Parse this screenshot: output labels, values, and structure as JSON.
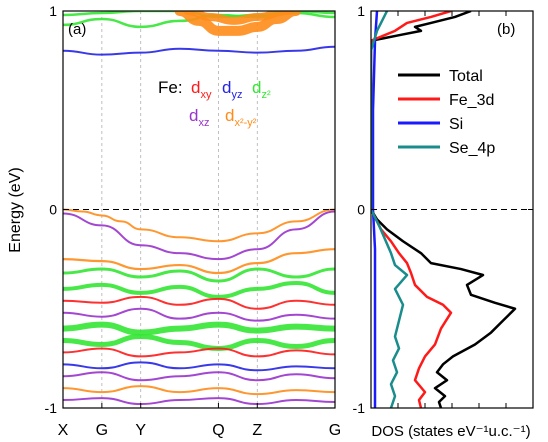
{
  "chart_data": [
    {
      "panel_label": "(a)",
      "type": "line",
      "title": "",
      "ylabel": "Energy (eV)",
      "xlabel": "",
      "ylim": [
        -1,
        1
      ],
      "yticks": [
        -1,
        0,
        1
      ],
      "k_labels": [
        "X",
        "G",
        "Y",
        "Q",
        "Z",
        "G"
      ],
      "k_positions": [
        0,
        1,
        2,
        4,
        5,
        7
      ],
      "xlim": [
        0,
        7
      ],
      "fermi_level": 0,
      "legend": {
        "prefix": "Fe:",
        "orbitals": [
          {
            "base": "d",
            "sub": "xy",
            "color": "#ff1a1a"
          },
          {
            "base": "d",
            "sub": "yz",
            "color": "#2323e6"
          },
          {
            "base": "d",
            "sub": "z²",
            "color": "#33e633"
          },
          {
            "base": "d",
            "sub": "xz",
            "color": "#9933cc"
          },
          {
            "base": "d",
            "sub": "x²-y²",
            "color": "#ff8c1a"
          }
        ]
      },
      "series": [
        {
          "values": [
            [
              0,
              0.8
            ],
            [
              1,
              0.78
            ],
            [
              2,
              0.79
            ],
            [
              3,
              0.81
            ],
            [
              4,
              0.8
            ],
            [
              5,
              0.79
            ],
            [
              6,
              0.8
            ],
            [
              7,
              0.82
            ]
          ],
          "color": "#2323e6",
          "width": 2.0
        },
        {
          "values": [
            [
              0,
              0.93
            ],
            [
              1,
              0.96
            ],
            [
              2,
              0.92
            ],
            [
              3,
              0.95
            ],
            [
              4,
              0.98
            ],
            [
              5,
              0.97
            ],
            [
              6,
              0.99
            ],
            [
              7,
              0.97
            ]
          ],
          "color": "#33e633",
          "width": 2.5
        },
        {
          "values": [
            [
              0,
              0.98
            ],
            [
              1,
              0.99
            ],
            [
              2,
              1.0
            ],
            [
              3,
              1.0
            ],
            [
              4,
              0.97
            ],
            [
              5,
              0.98
            ],
            [
              6,
              1.0
            ],
            [
              7,
              0.99
            ]
          ],
          "color": "#33e633",
          "width": 2.5
        },
        {
          "values": [
            [
              3,
              1.0
            ],
            [
              3.5,
              0.95
            ],
            [
              4,
              0.9
            ],
            [
              4.5,
              0.9
            ],
            [
              5,
              0.92
            ],
            [
              5.5,
              0.96
            ],
            [
              6,
              1.0
            ]
          ],
          "color": "#ff8c1a",
          "width": 10
        },
        {
          "values": [
            [
              3.2,
              1.0
            ],
            [
              3.8,
              0.97
            ],
            [
              4.4,
              0.95
            ],
            [
              5,
              0.97
            ],
            [
              5.8,
              1.0
            ]
          ],
          "color": "#ff8c1a",
          "width": 8
        },
        {
          "values": [
            [
              0,
              0.0
            ],
            [
              0.5,
              -0.01
            ],
            [
              1,
              -0.03
            ],
            [
              1.5,
              -0.06
            ],
            [
              2,
              -0.1
            ],
            [
              3,
              -0.14
            ],
            [
              4,
              -0.16
            ],
            [
              5,
              -0.12
            ],
            [
              6,
              -0.06
            ],
            [
              7,
              0.0
            ]
          ],
          "color": "#ff8c1a",
          "width": 2.0
        },
        {
          "values": [
            [
              0,
              -0.02
            ],
            [
              1,
              -0.08
            ],
            [
              2,
              -0.18
            ],
            [
              3,
              -0.22
            ],
            [
              4,
              -0.25
            ],
            [
              5,
              -0.2
            ],
            [
              6,
              -0.1
            ],
            [
              7,
              -0.01
            ]
          ],
          "color": "#9933cc",
          "width": 2.0
        },
        {
          "values": [
            [
              0,
              -0.25
            ],
            [
              1,
              -0.26
            ],
            [
              2,
              -0.3
            ],
            [
              3,
              -0.28
            ],
            [
              4,
              -0.32
            ],
            [
              5,
              -0.27
            ],
            [
              6,
              -0.22
            ],
            [
              7,
              -0.2
            ]
          ],
          "color": "#ff8c1a",
          "width": 2.2
        },
        {
          "values": [
            [
              0,
              -0.32
            ],
            [
              1,
              -0.3
            ],
            [
              2,
              -0.34
            ],
            [
              3,
              -0.31
            ],
            [
              4,
              -0.36
            ],
            [
              5,
              -0.3
            ],
            [
              6,
              -0.34
            ],
            [
              7,
              -0.3
            ]
          ],
          "color": "#33e633",
          "width": 3.0
        },
        {
          "values": [
            [
              0,
              -0.4
            ],
            [
              1,
              -0.38
            ],
            [
              2,
              -0.42
            ],
            [
              3,
              -0.39
            ],
            [
              4,
              -0.44
            ],
            [
              5,
              -0.4
            ],
            [
              6,
              -0.37
            ],
            [
              7,
              -0.42
            ]
          ],
          "color": "#33e633",
          "width": 4.0
        },
        {
          "values": [
            [
              0,
              -0.46
            ],
            [
              1,
              -0.47
            ],
            [
              2,
              -0.44
            ],
            [
              3,
              -0.48
            ],
            [
              4,
              -0.45
            ],
            [
              5,
              -0.5
            ],
            [
              6,
              -0.46
            ],
            [
              7,
              -0.48
            ]
          ],
          "color": "#ff1a1a",
          "width": 2.0
        },
        {
          "values": [
            [
              0,
              -0.52
            ],
            [
              1,
              -0.54
            ],
            [
              2,
              -0.5
            ],
            [
              3,
              -0.55
            ],
            [
              4,
              -0.52
            ],
            [
              5,
              -0.56
            ],
            [
              6,
              -0.53
            ],
            [
              7,
              -0.55
            ]
          ],
          "color": "#9933cc",
          "width": 2.0
        },
        {
          "values": [
            [
              0,
              -0.6
            ],
            [
              1,
              -0.58
            ],
            [
              2,
              -0.62
            ],
            [
              3,
              -0.6
            ],
            [
              4,
              -0.58
            ],
            [
              5,
              -0.61
            ],
            [
              6,
              -0.59
            ],
            [
              7,
              -0.6
            ]
          ],
          "color": "#33e633",
          "width": 6.0
        },
        {
          "values": [
            [
              0,
              -0.66
            ],
            [
              1,
              -0.68
            ],
            [
              2,
              -0.64
            ],
            [
              3,
              -0.67
            ],
            [
              4,
              -0.7
            ],
            [
              5,
              -0.66
            ],
            [
              6,
              -0.69
            ],
            [
              7,
              -0.66
            ]
          ],
          "color": "#33e633",
          "width": 5.0
        },
        {
          "values": [
            [
              0,
              -0.72
            ],
            [
              1,
              -0.7
            ],
            [
              2,
              -0.74
            ],
            [
              3,
              -0.72
            ],
            [
              4,
              -0.7
            ],
            [
              5,
              -0.74
            ],
            [
              6,
              -0.71
            ],
            [
              7,
              -0.73
            ]
          ],
          "color": "#ff1a1a",
          "width": 2.0
        },
        {
          "values": [
            [
              0,
              -0.78
            ],
            [
              1,
              -0.8
            ],
            [
              2,
              -0.77
            ],
            [
              3,
              -0.8
            ],
            [
              4,
              -0.78
            ],
            [
              5,
              -0.81
            ],
            [
              6,
              -0.79
            ],
            [
              7,
              -0.8
            ]
          ],
          "color": "#2323e6",
          "width": 2.0
        },
        {
          "values": [
            [
              0,
              -0.84
            ],
            [
              1,
              -0.82
            ],
            [
              2,
              -0.86
            ],
            [
              3,
              -0.84
            ],
            [
              4,
              -0.82
            ],
            [
              5,
              -0.86
            ],
            [
              6,
              -0.83
            ],
            [
              7,
              -0.85
            ]
          ],
          "color": "#9933cc",
          "width": 2.0
        },
        {
          "values": [
            [
              0,
              -0.9
            ],
            [
              1,
              -0.92
            ],
            [
              2,
              -0.89
            ],
            [
              3,
              -0.92
            ],
            [
              4,
              -0.9
            ],
            [
              5,
              -0.93
            ],
            [
              6,
              -0.91
            ],
            [
              7,
              -0.92
            ]
          ],
          "color": "#ff8c1a",
          "width": 2.0
        },
        {
          "values": [
            [
              0,
              -0.96
            ],
            [
              1,
              -0.95
            ],
            [
              2,
              -0.98
            ],
            [
              3,
              -0.96
            ],
            [
              4,
              -0.95
            ],
            [
              5,
              -0.98
            ],
            [
              6,
              -0.96
            ],
            [
              7,
              -0.97
            ]
          ],
          "color": "#9933cc",
          "width": 2.0
        }
      ]
    },
    {
      "panel_label": "(b)",
      "type": "line",
      "title": "",
      "xlabel": "DOS (states eV⁻¹u.c.⁻¹)",
      "ylabel": "",
      "ylim": [
        -1,
        1
      ],
      "yticks": [
        -1,
        0,
        1
      ],
      "fermi_level": 0,
      "legend_position": "top-right",
      "series": [
        {
          "name": "Total",
          "color": "#000000",
          "values": [
            [
              -1.0,
              0.35
            ],
            [
              -0.97,
              0.34
            ],
            [
              -0.94,
              0.37
            ],
            [
              -0.9,
              0.32
            ],
            [
              -0.86,
              0.38
            ],
            [
              -0.82,
              0.33
            ],
            [
              -0.78,
              0.36
            ],
            [
              -0.74,
              0.41
            ],
            [
              -0.68,
              0.52
            ],
            [
              -0.62,
              0.6
            ],
            [
              -0.56,
              0.66
            ],
            [
              -0.5,
              0.72
            ],
            [
              -0.47,
              0.62
            ],
            [
              -0.43,
              0.5
            ],
            [
              -0.38,
              0.48
            ],
            [
              -0.33,
              0.56
            ],
            [
              -0.3,
              0.45
            ],
            [
              -0.27,
              0.3
            ],
            [
              -0.22,
              0.25
            ],
            [
              -0.16,
              0.16
            ],
            [
              -0.1,
              0.08
            ],
            [
              -0.05,
              0.03
            ],
            [
              0.0,
              0.0
            ],
            [
              0.85,
              0.0
            ],
            [
              0.88,
              0.15
            ],
            [
              0.9,
              0.25
            ],
            [
              0.92,
              0.22
            ],
            [
              0.94,
              0.3
            ],
            [
              0.97,
              0.42
            ],
            [
              1.0,
              0.5
            ]
          ]
        },
        {
          "name": "Fe_3d",
          "color": "#ff1a1a",
          "values": [
            [
              -1.0,
              0.25
            ],
            [
              -0.96,
              0.24
            ],
            [
              -0.92,
              0.27
            ],
            [
              -0.86,
              0.22
            ],
            [
              -0.8,
              0.24
            ],
            [
              -0.74,
              0.27
            ],
            [
              -0.68,
              0.32
            ],
            [
              -0.6,
              0.35
            ],
            [
              -0.52,
              0.4
            ],
            [
              -0.48,
              0.36
            ],
            [
              -0.44,
              0.28
            ],
            [
              -0.38,
              0.22
            ],
            [
              -0.32,
              0.2
            ],
            [
              -0.27,
              0.18
            ],
            [
              -0.22,
              0.14
            ],
            [
              -0.16,
              0.1
            ],
            [
              -0.1,
              0.05
            ],
            [
              0.0,
              0.0
            ],
            [
              0.85,
              0.0
            ],
            [
              0.9,
              0.12
            ],
            [
              0.94,
              0.18
            ],
            [
              0.97,
              0.3
            ],
            [
              1.0,
              0.4
            ]
          ]
        },
        {
          "name": "Si",
          "color": "#1a1aff",
          "values": [
            [
              -1.0,
              0.02
            ],
            [
              -0.7,
              0.02
            ],
            [
              -0.4,
              0.02
            ],
            [
              -0.2,
              0.02
            ],
            [
              0.0,
              0.01
            ],
            [
              0.5,
              0.01
            ],
            [
              0.85,
              0.02
            ],
            [
              1.0,
              0.03
            ]
          ]
        },
        {
          "name": "Se_4p",
          "color": "#1a8c8c",
          "values": [
            [
              -1.0,
              0.1
            ],
            [
              -0.94,
              0.12
            ],
            [
              -0.88,
              0.1
            ],
            [
              -0.82,
              0.13
            ],
            [
              -0.76,
              0.11
            ],
            [
              -0.7,
              0.14
            ],
            [
              -0.64,
              0.12
            ],
            [
              -0.56,
              0.14
            ],
            [
              -0.48,
              0.16
            ],
            [
              -0.4,
              0.12
            ],
            [
              -0.33,
              0.18
            ],
            [
              -0.28,
              0.12
            ],
            [
              -0.22,
              0.1
            ],
            [
              -0.15,
              0.07
            ],
            [
              -0.08,
              0.04
            ],
            [
              0.0,
              0.0
            ],
            [
              0.8,
              0.0
            ],
            [
              0.9,
              0.03
            ],
            [
              0.96,
              0.06
            ],
            [
              1.0,
              0.08
            ]
          ]
        }
      ]
    }
  ]
}
